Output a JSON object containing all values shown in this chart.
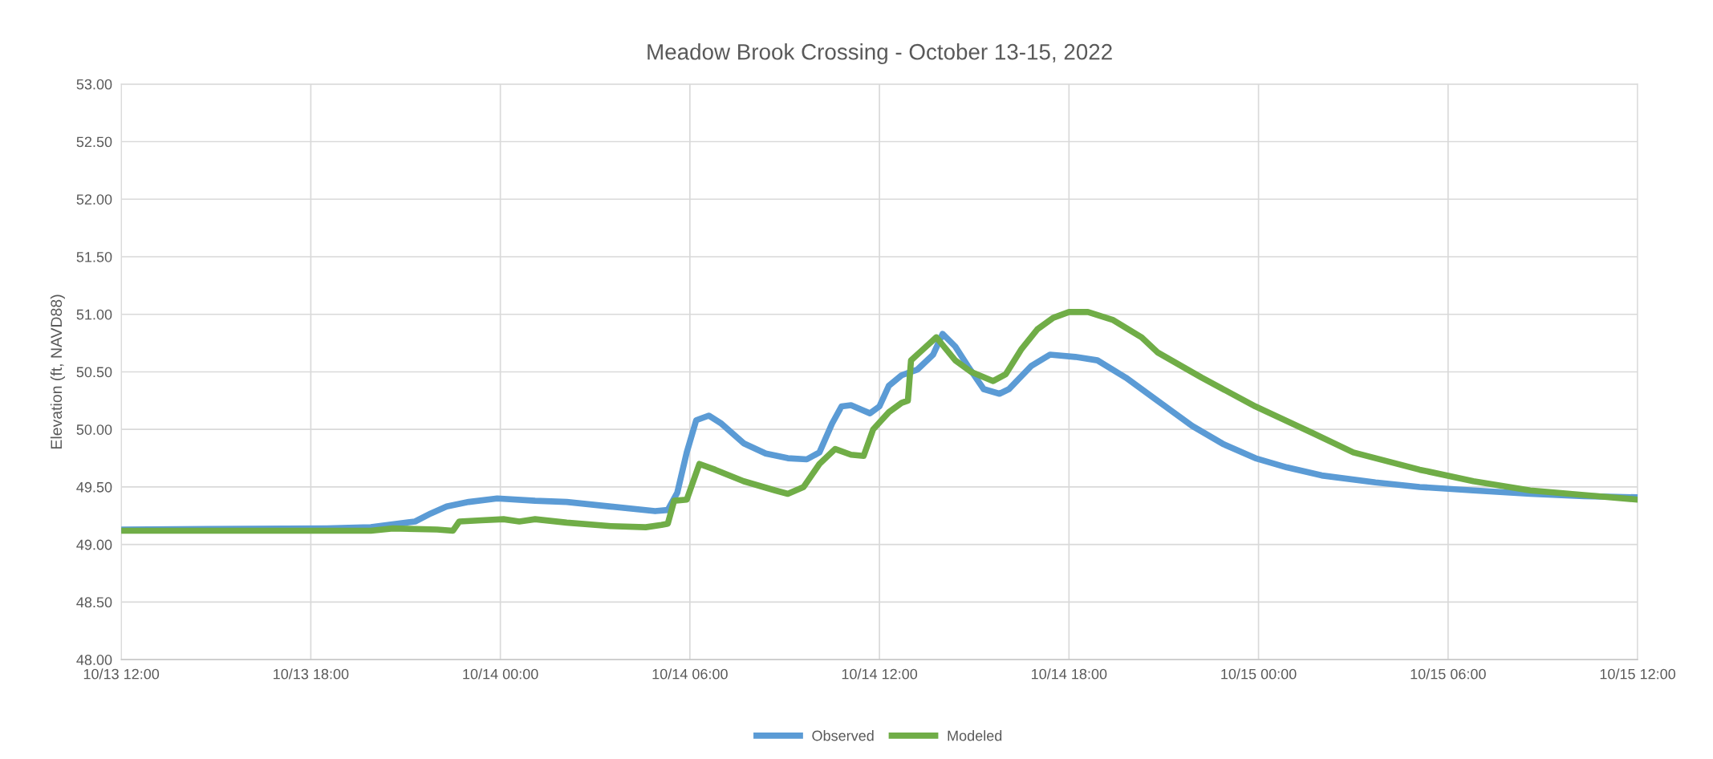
{
  "chart_data": {
    "type": "line",
    "title": "Meadow Brook Crossing - October 13-15, 2022",
    "ylabel": "Elevation (ft, NAVD88)",
    "xlim": [
      "2022-10-13T12:00",
      "2022-10-15T12:00"
    ],
    "xticks": [
      {
        "value": "2022-10-13T12:00",
        "label": "10/13 12:00"
      },
      {
        "value": "2022-10-13T18:00",
        "label": "10/13 18:00"
      },
      {
        "value": "2022-10-14T00:00",
        "label": "10/14 00:00"
      },
      {
        "value": "2022-10-14T06:00",
        "label": "10/14 06:00"
      },
      {
        "value": "2022-10-14T12:00",
        "label": "10/14 12:00"
      },
      {
        "value": "2022-10-14T18:00",
        "label": "10/14 18:00"
      },
      {
        "value": "2022-10-15T00:00",
        "label": "10/15 00:00"
      },
      {
        "value": "2022-10-15T06:00",
        "label": "10/15 06:00"
      },
      {
        "value": "2022-10-15T12:00",
        "label": "10/15 12:00"
      }
    ],
    "ylim": [
      48,
      53
    ],
    "yticks": [
      {
        "value": 48,
        "label": "48.00"
      },
      {
        "value": 48.5,
        "label": "48.50"
      },
      {
        "value": 49,
        "label": "49.00"
      },
      {
        "value": 49.5,
        "label": "49.50"
      },
      {
        "value": 50,
        "label": "50.00"
      },
      {
        "value": 50.5,
        "label": "50.50"
      },
      {
        "value": 51,
        "label": "51.00"
      },
      {
        "value": 51.5,
        "label": "51.50"
      },
      {
        "value": 52,
        "label": "52.00"
      },
      {
        "value": 52.5,
        "label": "52.50"
      },
      {
        "value": 53,
        "label": "53.00"
      }
    ],
    "grid": true,
    "legend": "bottom",
    "marker": "none",
    "line_style": "solid",
    "series": [
      {
        "name": "Observed",
        "color": "#5b9bd5",
        "x": [
          "2022-10-13T12:00",
          "2022-10-13T18:30",
          "2022-10-13T19:54",
          "2022-10-13T21:18",
          "2022-10-13T21:48",
          "2022-10-13T22:18",
          "2022-10-13T23:00",
          "2022-10-13T23:54",
          "2022-10-14T01:06",
          "2022-10-14T02:06",
          "2022-10-14T03:30",
          "2022-10-14T04:54",
          "2022-10-14T05:18",
          "2022-10-14T05:36",
          "2022-10-14T05:54",
          "2022-10-14T06:12",
          "2022-10-14T06:36",
          "2022-10-14T07:00",
          "2022-10-14T07:42",
          "2022-10-14T08:24",
          "2022-10-14T09:06",
          "2022-10-14T09:42",
          "2022-10-14T10:06",
          "2022-10-14T10:30",
          "2022-10-14T10:48",
          "2022-10-14T11:06",
          "2022-10-14T11:42",
          "2022-10-14T12:00",
          "2022-10-14T12:18",
          "2022-10-14T12:42",
          "2022-10-14T13:12",
          "2022-10-14T13:42",
          "2022-10-14T14:00",
          "2022-10-14T14:24",
          "2022-10-14T14:48",
          "2022-10-14T15:18",
          "2022-10-14T15:48",
          "2022-10-14T16:06",
          "2022-10-14T16:48",
          "2022-10-14T17:24",
          "2022-10-14T18:12",
          "2022-10-14T18:54",
          "2022-10-14T19:48",
          "2022-10-14T20:48",
          "2022-10-14T21:54",
          "2022-10-14T22:54",
          "2022-10-14T23:54",
          "2022-10-15T00:54",
          "2022-10-15T02:00",
          "2022-10-15T03:42",
          "2022-10-15T05:06",
          "2022-10-15T06:48",
          "2022-10-15T08:36",
          "2022-10-15T10:18",
          "2022-10-15T12:00"
        ],
        "values": [
          49.13,
          49.14,
          49.15,
          49.2,
          49.27,
          49.33,
          49.37,
          49.4,
          49.38,
          49.37,
          49.33,
          49.29,
          49.3,
          49.45,
          49.8,
          50.08,
          50.12,
          50.05,
          49.88,
          49.79,
          49.75,
          49.74,
          49.8,
          50.05,
          50.2,
          50.21,
          50.14,
          50.2,
          50.38,
          50.47,
          50.52,
          50.65,
          50.83,
          50.72,
          50.55,
          50.35,
          50.31,
          50.35,
          50.55,
          50.65,
          50.63,
          50.6,
          50.45,
          50.25,
          50.03,
          49.87,
          49.75,
          49.67,
          49.6,
          49.54,
          49.5,
          49.47,
          49.44,
          49.42,
          49.41
        ]
      },
      {
        "name": "Modeled",
        "color": "#70ad47",
        "x": [
          "2022-10-13T12:00",
          "2022-10-13T19:54",
          "2022-10-13T20:36",
          "2022-10-13T22:00",
          "2022-10-13T22:30",
          "2022-10-13T22:42",
          "2022-10-13T23:24",
          "2022-10-14T00:06",
          "2022-10-14T00:36",
          "2022-10-14T01:06",
          "2022-10-14T02:06",
          "2022-10-14T03:30",
          "2022-10-14T04:36",
          "2022-10-14T05:06",
          "2022-10-14T05:18",
          "2022-10-14T05:30",
          "2022-10-14T05:54",
          "2022-10-14T06:18",
          "2022-10-14T06:48",
          "2022-10-14T07:42",
          "2022-10-14T08:42",
          "2022-10-14T09:06",
          "2022-10-14T09:36",
          "2022-10-14T10:06",
          "2022-10-14T10:36",
          "2022-10-14T11:06",
          "2022-10-14T11:30",
          "2022-10-14T11:48",
          "2022-10-14T12:18",
          "2022-10-14T12:42",
          "2022-10-14T12:54",
          "2022-10-14T13:00",
          "2022-10-14T13:24",
          "2022-10-14T13:48",
          "2022-10-14T14:24",
          "2022-10-14T14:54",
          "2022-10-14T15:36",
          "2022-10-14T16:00",
          "2022-10-14T16:30",
          "2022-10-14T17:00",
          "2022-10-14T17:30",
          "2022-10-14T18:00",
          "2022-10-14T18:36",
          "2022-10-14T19:24",
          "2022-10-14T20:18",
          "2022-10-14T20:48",
          "2022-10-14T22:12",
          "2022-10-14T23:54",
          "2022-10-15T01:42",
          "2022-10-15T03:00",
          "2022-10-15T05:06",
          "2022-10-15T06:48",
          "2022-10-15T08:36",
          "2022-10-15T10:18",
          "2022-10-15T12:00"
        ],
        "values": [
          49.12,
          49.12,
          49.14,
          49.13,
          49.12,
          49.2,
          49.21,
          49.22,
          49.2,
          49.22,
          49.19,
          49.16,
          49.15,
          49.17,
          49.18,
          49.38,
          49.39,
          49.7,
          49.65,
          49.55,
          49.47,
          49.44,
          49.5,
          49.7,
          49.83,
          49.78,
          49.77,
          50.0,
          50.15,
          50.23,
          50.25,
          50.6,
          50.7,
          50.8,
          50.6,
          50.5,
          50.42,
          50.48,
          50.7,
          50.87,
          50.97,
          51.02,
          51.02,
          50.95,
          50.8,
          50.67,
          50.45,
          50.2,
          49.97,
          49.8,
          49.65,
          49.55,
          49.47,
          49.43,
          49.39
        ]
      }
    ]
  }
}
